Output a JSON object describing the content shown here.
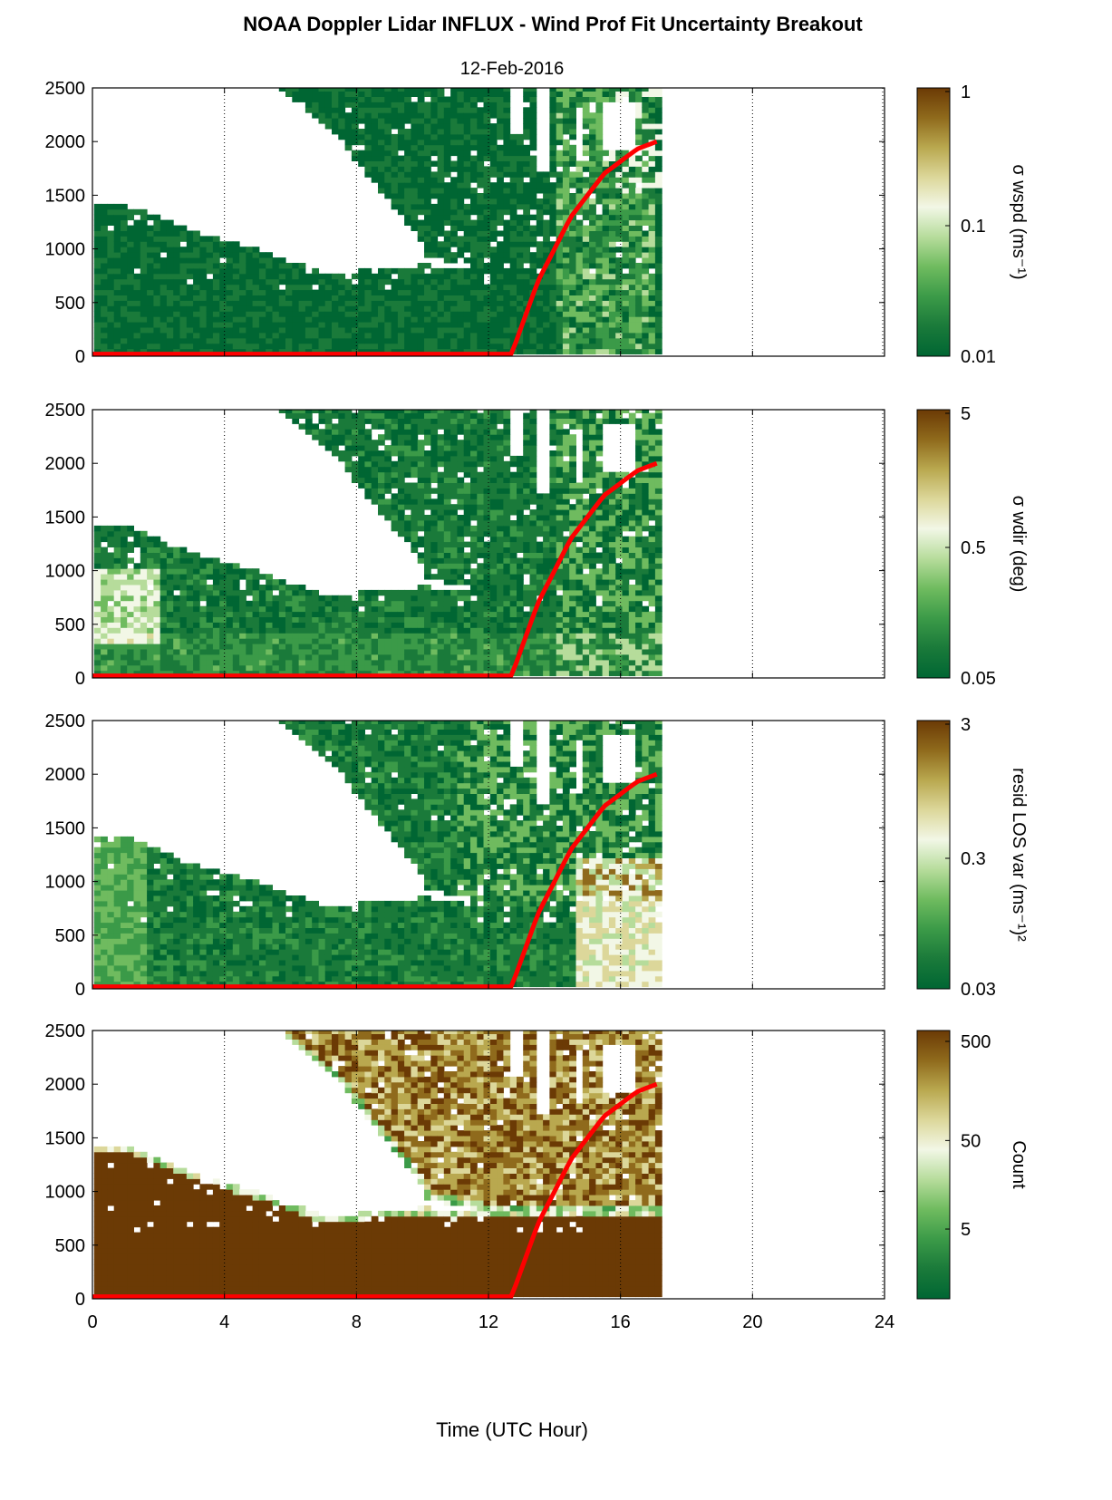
{
  "title": "NOAA Doppler Lidar INFLUX - Wind Prof Fit Uncertainty Breakout",
  "subtitle": "12-Feb-2016",
  "xlabel": "Time (UTC Hour)",
  "x_ticks": [
    "0",
    "4",
    "8",
    "12",
    "16",
    "20",
    "24"
  ],
  "y_ticks": [
    "0",
    "500",
    "1000",
    "1500",
    "2000",
    "2500"
  ],
  "colormap": [
    "#006633",
    "#1a7a3a",
    "#3b9a48",
    "#6fbb5f",
    "#b6dc9b",
    "#f2f7e6",
    "#dcd79a",
    "#b9a84f",
    "#8f6a1c",
    "#6b3a05"
  ],
  "boundary_color": "#ff0000",
  "chart_data": [
    {
      "type": "heatmap",
      "title": "",
      "xlabel": "",
      "ylabel": "",
      "colorbar_label": "σ wspd (ms⁻¹)",
      "colorbar_scale": "log",
      "colorbar_range": [
        0.01,
        1
      ],
      "colorbar_ticks": [
        "1",
        "0.1",
        "0.01"
      ],
      "xlim": [
        0,
        24
      ],
      "ylim": [
        0,
        2500
      ],
      "grid": "vertical dotted",
      "mixing_height_line": {
        "color": "#ff0000",
        "x": [
          0,
          12.7,
          13.5,
          14.5,
          15.5,
          16.5,
          17.1
        ],
        "y": [
          20,
          20,
          700,
          1300,
          1700,
          1930,
          2000
        ]
      }
    },
    {
      "type": "heatmap",
      "title": "",
      "xlabel": "",
      "ylabel": "",
      "colorbar_label": "σ wdir (deg)",
      "colorbar_scale": "log",
      "colorbar_range": [
        0.05,
        5
      ],
      "colorbar_ticks": [
        "5",
        "0.5",
        "0.05"
      ],
      "xlim": [
        0,
        24
      ],
      "ylim": [
        0,
        2500
      ],
      "grid": "vertical dotted",
      "mixing_height_line": {
        "color": "#ff0000",
        "x": [
          0,
          12.7,
          13.5,
          14.5,
          15.5,
          16.5,
          17.1
        ],
        "y": [
          20,
          20,
          700,
          1300,
          1700,
          1930,
          2000
        ]
      }
    },
    {
      "type": "heatmap",
      "title": "",
      "xlabel": "",
      "ylabel": "",
      "colorbar_label": "resid LOS var (ms⁻¹)²",
      "colorbar_scale": "log",
      "colorbar_range": [
        0.03,
        3
      ],
      "colorbar_ticks": [
        "3",
        "0.3",
        "0.03"
      ],
      "xlim": [
        0,
        24
      ],
      "ylim": [
        0,
        2500
      ],
      "grid": "vertical dotted",
      "mixing_height_line": {
        "color": "#ff0000",
        "x": [
          0,
          12.7,
          13.5,
          14.5,
          15.5,
          16.5,
          17.1
        ],
        "y": [
          20,
          20,
          700,
          1300,
          1700,
          1930,
          2000
        ]
      }
    },
    {
      "type": "heatmap",
      "title": "",
      "xlabel": "Time (UTC Hour)",
      "ylabel": "",
      "colorbar_label": "Count",
      "colorbar_scale": "log",
      "colorbar_range": [
        1,
        500
      ],
      "colorbar_ticks": [
        "500",
        "50",
        "5"
      ],
      "xlim": [
        0,
        24
      ],
      "ylim": [
        0,
        2500
      ],
      "grid": "vertical dotted",
      "mixing_height_line": {
        "color": "#ff0000",
        "x": [
          0,
          12.7,
          13.5,
          14.5,
          15.5,
          16.5,
          17.1
        ],
        "y": [
          20,
          20,
          700,
          1300,
          1700,
          1930,
          2000
        ]
      }
    }
  ]
}
